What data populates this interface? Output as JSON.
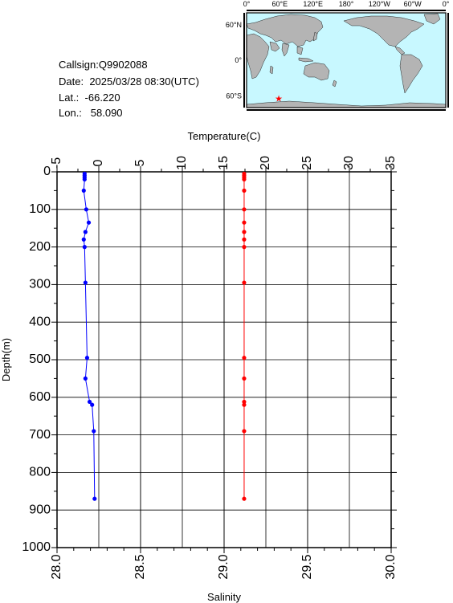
{
  "station": {
    "callsign_label": "Callsign:",
    "callsign": "Q9902088",
    "date_label": "Date:",
    "date": "2025/03/28 08:30(UTC)",
    "lat_label": "Lat.:",
    "lat": "-66.220",
    "lon_label": "Lon.:",
    "lon": "58.090"
  },
  "map": {
    "lon_labels": [
      "0°",
      "60°E",
      "120°E",
      "180°",
      "120°W",
      "60°W",
      "0°"
    ],
    "lat_labels": [
      "60°N",
      "0°",
      "60°S"
    ],
    "marker_lon": 58.09,
    "marker_lat": -66.22,
    "marker_color": "#ff0000",
    "ocean_color": "#c8f8ff",
    "land_color": "#b4b4b4"
  },
  "chart_data": {
    "type": "line",
    "top_axis": {
      "label": "Temperature(C)",
      "range": [
        -5,
        35
      ],
      "ticks": [
        "-5",
        "0",
        "5",
        "10",
        "15",
        "20",
        "25",
        "30",
        "35"
      ]
    },
    "bottom_axis": {
      "label": "Salinity",
      "range": [
        28.0,
        30.0
      ],
      "ticks": [
        "28.0",
        "28.5",
        "29.0",
        "29.5",
        "30.0"
      ]
    },
    "y_axis": {
      "label": "Depth(m)",
      "range": [
        0,
        1000
      ],
      "inverted": true,
      "ticks": [
        "0",
        "100",
        "200",
        "300",
        "400",
        "500",
        "600",
        "700",
        "800",
        "900",
        "1000"
      ]
    },
    "grid": true,
    "series": [
      {
        "color": "#0000ff",
        "axis": "top",
        "depth": [
          5,
          10,
          15,
          20,
          50,
          100,
          135,
          160,
          180,
          200,
          295,
          495,
          550,
          612,
          620,
          690,
          870
        ],
        "values": [
          -1.7,
          -1.7,
          -1.7,
          -1.7,
          -1.8,
          -1.5,
          -1.2,
          -1.6,
          -1.8,
          -1.7,
          -1.6,
          -1.4,
          -1.6,
          -1.1,
          -0.8,
          -0.6,
          -0.5
        ]
      },
      {
        "color": "#ff0000",
        "axis": "bottom",
        "depth": [
          5,
          10,
          15,
          20,
          50,
          100,
          135,
          160,
          180,
          200,
          295,
          495,
          550,
          612,
          620,
          690,
          870
        ],
        "values": [
          29.12,
          29.12,
          29.12,
          29.12,
          29.12,
          29.12,
          29.12,
          29.12,
          29.12,
          29.12,
          29.12,
          29.12,
          29.12,
          29.12,
          29.12,
          29.12,
          29.12
        ]
      }
    ]
  }
}
